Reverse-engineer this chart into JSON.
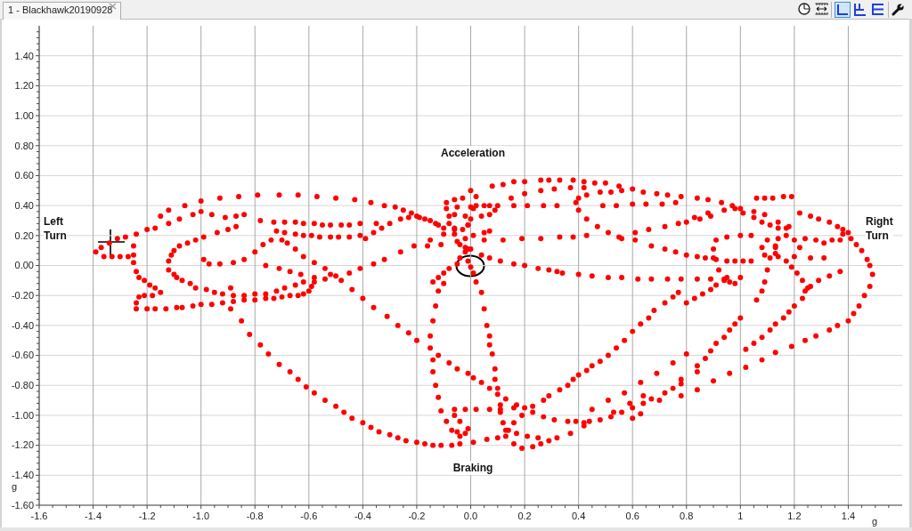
{
  "chart_data": {
    "type": "scatter",
    "title": "1 - Blackhawk20190928",
    "xlabel": "g",
    "ylabel": "g",
    "annotations": [
      "Acceleration",
      "Left Turn",
      "Right Turn",
      "Braking"
    ],
    "color": "#ff0000",
    "marker": "circle",
    "grid": true,
    "xlim": [
      -1.6,
      1.6
    ],
    "ylim": [
      -1.6,
      1.6
    ],
    "xticks": [
      -1.6,
      {
        "value": -1.55,
        "label": null
      },
      {
        "value": -1.5,
        "label": null
      },
      {
        "value": -1.45,
        "label": null
      },
      -1.4,
      {
        "value": -1.35,
        "label": null
      },
      {
        "value": -1.3,
        "label": null
      },
      {
        "value": -1.25,
        "label": null
      },
      -1.2,
      {
        "value": -1.15,
        "label": null
      },
      {
        "value": -1.1,
        "label": null
      },
      {
        "value": -1.05,
        "label": null
      },
      {
        "value": -1,
        "label": "-1.0"
      },
      {
        "value": -0.95,
        "label": null
      },
      {
        "value": -0.9,
        "label": null
      },
      {
        "value": -0.85,
        "label": null
      },
      -0.8,
      {
        "value": -0.75,
        "label": null
      },
      {
        "value": -0.7,
        "label": null
      },
      {
        "value": -0.65,
        "label": null
      },
      -0.6,
      {
        "value": -0.55,
        "label": null
      },
      {
        "value": -0.5,
        "label": null
      },
      {
        "value": -0.45,
        "label": null
      },
      -0.4,
      {
        "value": -0.35,
        "label": null
      },
      {
        "value": -0.3,
        "label": null
      },
      {
        "value": -0.25,
        "label": null
      },
      -0.2,
      {
        "value": -0.15,
        "label": null
      },
      {
        "value": -0.1,
        "label": null
      },
      {
        "value": -0.05,
        "label": null
      },
      {
        "value": 0,
        "label": "0.0"
      },
      {
        "value": 0.05,
        "label": null
      },
      {
        "value": 0.1,
        "label": null
      },
      {
        "value": 0.15,
        "label": null
      },
      0.2,
      {
        "value": 0.25,
        "label": null
      },
      {
        "value": 0.3,
        "label": null
      },
      {
        "value": 0.35,
        "label": null
      },
      0.4,
      {
        "value": 0.45,
        "label": null
      },
      {
        "value": 0.5,
        "label": null
      },
      {
        "value": 0.55,
        "label": null
      },
      0.6,
      {
        "value": 0.65,
        "label": null
      },
      {
        "value": 0.7,
        "label": null
      },
      {
        "value": 0.75,
        "label": null
      },
      0.8,
      {
        "value": 0.85,
        "label": null
      },
      {
        "value": 0.9,
        "label": null
      },
      {
        "value": 0.95,
        "label": null
      },
      1,
      {
        "value": 1.05,
        "label": null
      },
      {
        "value": 1.1,
        "label": null
      },
      {
        "value": 1.15,
        "label": null
      },
      1.2,
      {
        "value": 1.25,
        "label": null
      },
      {
        "value": 1.3,
        "label": null
      },
      {
        "value": 1.35,
        "label": null
      },
      1.4,
      {
        "value": 1.45,
        "label": null
      },
      {
        "value": 1.5,
        "label": null
      },
      {
        "value": 1.55,
        "label": null
      }
    ],
    "yticks": [
      {
        "value": -1.6,
        "label": "-1.60"
      },
      {
        "value": -1.56,
        "label": null
      },
      {
        "value": -1.52,
        "label": null
      },
      {
        "value": -1.48,
        "label": null
      },
      {
        "value": -1.44,
        "label": null
      },
      {
        "value": -1.4,
        "label": "-1.40"
      },
      {
        "value": -1.36,
        "label": null
      },
      {
        "value": -1.32,
        "label": null
      },
      {
        "value": -1.28,
        "label": null
      },
      {
        "value": -1.24,
        "label": null
      },
      {
        "value": -1.2,
        "label": "-1.20"
      },
      {
        "value": -1.16,
        "label": null
      },
      {
        "value": -1.12,
        "label": null
      },
      {
        "value": -1.08,
        "label": null
      },
      {
        "value": -1.04,
        "label": null
      },
      {
        "value": -1,
        "label": "-1.00"
      },
      {
        "value": -0.96,
        "label": null
      },
      {
        "value": -0.92,
        "label": null
      },
      {
        "value": -0.88,
        "label": null
      },
      {
        "value": -0.84,
        "label": null
      },
      {
        "value": -0.8,
        "label": "-0.80"
      },
      {
        "value": -0.76,
        "label": null
      },
      {
        "value": -0.72,
        "label": null
      },
      {
        "value": -0.68,
        "label": null
      },
      {
        "value": -0.64,
        "label": null
      },
      {
        "value": -0.6,
        "label": "-0.60"
      },
      {
        "value": -0.56,
        "label": null
      },
      {
        "value": -0.52,
        "label": null
      },
      {
        "value": -0.48,
        "label": null
      },
      {
        "value": -0.44,
        "label": null
      },
      {
        "value": -0.4,
        "label": "-0.40"
      },
      {
        "value": -0.36,
        "label": null
      },
      {
        "value": -0.32,
        "label": null
      },
      {
        "value": -0.28,
        "label": null
      },
      {
        "value": -0.24,
        "label": null
      },
      {
        "value": -0.2,
        "label": "-0.20"
      },
      {
        "value": -0.16,
        "label": null
      },
      {
        "value": -0.12,
        "label": null
      },
      {
        "value": -0.08,
        "label": null
      },
      {
        "value": -0.04,
        "label": null
      },
      {
        "value": 0,
        "label": "0.00"
      },
      {
        "value": 0.04,
        "label": null
      },
      {
        "value": 0.08,
        "label": null
      },
      {
        "value": 0.12,
        "label": null
      },
      {
        "value": 0.16,
        "label": null
      },
      {
        "value": 0.2,
        "label": "0.20"
      },
      {
        "value": 0.24,
        "label": null
      },
      {
        "value": 0.28,
        "label": null
      },
      {
        "value": 0.32,
        "label": null
      },
      {
        "value": 0.36,
        "label": null
      },
      {
        "value": 0.4,
        "label": "0.40"
      },
      {
        "value": 0.44,
        "label": null
      },
      {
        "value": 0.48,
        "label": null
      },
      {
        "value": 0.52,
        "label": null
      },
      {
        "value": 0.56,
        "label": null
      },
      {
        "value": 0.6,
        "label": "0.60"
      },
      {
        "value": 0.64,
        "label": null
      },
      {
        "value": 0.68,
        "label": null
      },
      {
        "value": 0.72,
        "label": null
      },
      {
        "value": 0.76,
        "label": null
      },
      {
        "value": 0.8,
        "label": "0.80"
      },
      {
        "value": 0.84,
        "label": null
      },
      {
        "value": 0.88,
        "label": null
      },
      {
        "value": 0.92,
        "label": null
      },
      {
        "value": 0.96,
        "label": null
      },
      {
        "value": 1,
        "label": "1.00"
      },
      {
        "value": 1.04,
        "label": null
      },
      {
        "value": 1.08,
        "label": null
      },
      {
        "value": 1.12,
        "label": null
      },
      {
        "value": 1.16,
        "label": null
      },
      {
        "value": 1.2,
        "label": "1.20"
      },
      {
        "value": 1.24,
        "label": null
      },
      {
        "value": 1.28,
        "label": null
      },
      {
        "value": 1.32,
        "label": null
      },
      {
        "value": 1.36,
        "label": null
      },
      {
        "value": 1.4,
        "label": "1.40"
      },
      {
        "value": 1.44,
        "label": null
      },
      {
        "value": 1.48,
        "label": null
      },
      {
        "value": 1.52,
        "label": null
      },
      {
        "value": 1.56,
        "label": null
      }
    ],
    "x": [
      -1.39,
      -1.36,
      -1.33,
      -1.3,
      -1.27,
      -1.37,
      -1.34,
      -1.31,
      -1.28,
      -1.24,
      -1.2,
      -1.17,
      -1.12,
      -1.08,
      -1.03,
      -1,
      -0.96,
      -0.91,
      -0.87,
      -0.84,
      -1.25,
      -1.25,
      -1.25,
      -1.24,
      -1.23,
      -1.21,
      -1.19,
      -1.17,
      -1.15,
      -1.18,
      -1.21,
      -1.23,
      -1.24,
      -1.24,
      -1.2,
      -1.17,
      -1.13,
      -1.09,
      -1.07,
      -1.03,
      -1,
      -0.96,
      -0.92,
      -0.88,
      -0.84,
      -0.8,
      -0.76,
      -0.73,
      -0.7,
      -0.67,
      -0.64,
      -0.62,
      -0.6,
      -0.59,
      -0.58,
      -1.12,
      -1.11,
      -1.1,
      -1.08,
      -1.05,
      -1.02,
      -0.99,
      -0.94,
      -0.9,
      -0.87,
      -1.12,
      -1.1,
      -1.09,
      -1.07,
      -1.04,
      -1.02,
      -0.98,
      -0.95,
      -0.92,
      -0.88,
      -0.84,
      -0.8,
      -0.76,
      -0.72,
      -0.69,
      -0.65,
      -0.62,
      -0.99,
      -0.97,
      -0.93,
      -0.88,
      -0.84,
      -0.8,
      -0.77,
      -0.74,
      -0.7,
      -0.68,
      -0.65,
      -0.62,
      -0.58,
      -0.76,
      -0.71,
      -0.67,
      -0.63,
      -0.58,
      -0.54,
      -0.5,
      -0.45,
      -0.41,
      -0.36,
      -0.32,
      -0.26,
      -0.21,
      -0.15,
      -0.1,
      -0.06,
      -0.01,
      -0.89,
      -0.89,
      -0.54,
      -0.52,
      -1.15,
      -1.12,
      -1.06,
      -1,
      -0.93,
      -0.86,
      -0.79,
      -0.71,
      -0.64,
      -0.57,
      -0.5,
      -0.43,
      -0.37,
      -0.32,
      -0.28,
      -0.25,
      -0.22,
      -0.19,
      -0.15,
      -0.12,
      -0.36,
      -0.33,
      -0.3,
      -0.26,
      -0.23,
      -0.2,
      -0.17,
      -0.13,
      -0.1,
      -0.78,
      -0.73,
      -0.69,
      -0.65,
      -0.62,
      -0.58,
      -0.55,
      -0.52,
      -0.48,
      -0.45,
      -0.41,
      -0.35,
      -0.72,
      -0.69,
      -0.65,
      -0.62,
      -0.59,
      -0.56,
      -0.52,
      -0.49,
      -0.45,
      -0.41,
      -0.39,
      -0.16,
      -0.11,
      -0.02,
      -0.04,
      -0.05,
      -0.08,
      -0.1,
      -0.12,
      -0.14,
      0,
      0.02,
      0.02,
      0.01,
      -0.03,
      -0.06,
      -0.09,
      -0.09,
      -0.06,
      -0.02,
      0.04,
      0.07,
      0.09,
      0.07,
      0,
      -0.05,
      -0.08,
      -0.08,
      -0.06,
      -0.03,
      -0.01,
      0,
      -0.06,
      -0.02,
      0.01,
      0.05,
      0.07,
      -0.05,
      -0.04,
      -0.02,
      -0.01,
      0,
      0.04,
      0.07,
      0.11,
      0.16,
      0.2,
      0.25,
      0.29,
      0.32,
      0.34,
      0.4,
      0.45,
      0.51,
      0.56,
      0.62,
      0.67,
      0.73,
      0.78,
      0.84,
      0.89,
      0.94,
      0.96,
      0.98,
      1,
      -0.01,
      0,
      0.01,
      0.02,
      0.04,
      0.05,
      0.06,
      0.07,
      0.07,
      0.08,
      0.09,
      0.09,
      0.1,
      0.11,
      0.11,
      0.12,
      0.13,
      -0.1,
      -0.12,
      -0.13,
      -0.14,
      -0.15,
      -0.15,
      -0.14,
      -0.14,
      -0.13,
      -0.12,
      -0.11,
      -0.09,
      -0.07,
      -0.04,
      -0.05,
      -0.02,
      -0.01,
      -0.04,
      -0.06,
      -0.06,
      -0.02,
      0.02,
      0.07,
      0.11,
      0.16,
      -0.48,
      -0.44,
      -0.4,
      -0.36,
      -0.31,
      -0.27,
      -0.23,
      -0.2,
      -0.12,
      -0.08,
      -0.05,
      -0.01,
      0.01,
      0.04,
      0.07,
      0.1,
      0.13,
      0.17,
      0.2,
      0.23,
      0.27,
      0.31,
      0.36,
      0.39,
      0.42,
      0.44,
      0.48,
      0.52,
      0.56,
      0.6,
      0.64,
      0.67,
      0.72,
      0.75,
      0.78,
      -0.85,
      -0.82,
      -0.78,
      -0.75,
      -0.71,
      -0.67,
      -0.64,
      -0.61,
      -0.58,
      -0.54,
      -0.5,
      -0.47,
      -0.44,
      -0.4,
      -0.37,
      -0.34,
      -0.3,
      -0.27,
      -0.24,
      -0.2,
      -0.17,
      -0.14,
      -0.11,
      -0.07,
      -0.04,
      0.01,
      0.06,
      0.1,
      0.13,
      0.16,
      0.19,
      0.23,
      0.26,
      0.29,
      0.25,
      0.21,
      0.17,
      0.14,
      0.16,
      0.19,
      0.23,
      0.27,
      0.29,
      0.33,
      0.36,
      0.38,
      0.4,
      0.43,
      0.45,
      0.48,
      0.51,
      0.54,
      0.57,
      0.6,
      0.63,
      0.66,
      0.68,
      0.72,
      0.75,
      0.77,
      0.8,
      0.83,
      0.86,
      0.89,
      0.91,
      0.94,
      0.32,
      0.37,
      0.42,
      0.53,
      0.59,
      0.64,
      0.78,
      0.84,
      0.45,
      0.51,
      0.57,
      0.63,
      0.69,
      0.75,
      0.6,
      0.63,
      0.7,
      0.78,
      0.84,
      0.9,
      0.96,
      1.02,
      0.8,
      0.84,
      0.87,
      0.89,
      0.91,
      0.94,
      0.96,
      0.98,
      1,
      1.02,
      1.05,
      1.08,
      1.11,
      1.13,
      1.16,
      1.18,
      1.2,
      1.23,
      1.24,
      1.26,
      1.08,
      1.13,
      1.19,
      1.24,
      1.28,
      1.33,
      1.36,
      1.4,
      1.42,
      1.44,
      1.46,
      1.48,
      1.49,
      1.48,
      1.47,
      1.45,
      1.43,
      1.41,
      1.4,
      1.38,
      1.36,
      1.33,
      1.29,
      1.26,
      1.22,
      0.08,
      0.12,
      0.16,
      0.2,
      0.26,
      0.29,
      0.33,
      0.38,
      0.42,
      0.46,
      0.5,
      0.55,
      0.6,
      0.64,
      0.69,
      0.73,
      0.78,
      0.84,
      0.88,
      0.93,
      0.97,
      1,
      1.05,
      1.09,
      1.14,
      1.17,
      0.15,
      0.2,
      0.26,
      0.31,
      0.37,
      0.42,
      0.39,
      0.4,
      0.43,
      0.47,
      0.51,
      0.55,
      0.61,
      0.66,
      0.72,
      0.77,
      0.83,
      0.88,
      0.94,
      0.4,
      0.43,
      0.48,
      0.52,
      0.56,
      0.05,
      0.1,
      0.16,
      0.21,
      0.27,
      0.32,
      0.49,
      0.54,
      0.6,
      0.65,
      0.71,
      0.76,
      0.05,
      0.12,
      0.19,
      0.26,
      0.33,
      0.38,
      0.43,
      0.56,
      0.61,
      0.67,
      0.72,
      0.76,
      0.8,
      0.84,
      0.87,
      0.91,
      0.95,
      0.98,
      1.01,
      1.04,
      0.8,
      0.85,
      0.89,
      0.98,
      1.06,
      1.09,
      1.12,
      1.16,
      1.19,
      1.01,
      1.05,
      1.08,
      1.11,
      1.14,
      1.18,
      1.38,
      1.37,
      1.17,
      1.2,
      1.22,
      1.2,
      1.17,
      1.14,
      1.13,
      1.14,
      1.1,
      1.13,
      1.13,
      1.11,
      1.09,
      1.08,
      1.19,
      1.21,
      1.23,
      1.25,
      1.29,
      1.33,
      1.37,
      0.91,
      0.95,
      1,
      1.04,
      0.9,
      0.9,
      0.92,
      0.95,
      1.1,
      1.09,
      1.08,
      1.06,
      1.24,
      1.28,
      1.31,
      1.34,
      1.26,
      1.31
    ],
    "values": [
      0.09,
      0.06,
      0.06,
      0.06,
      0.06,
      0.12,
      0.15,
      0.18,
      0.19,
      0.21,
      0.24,
      0.25,
      0.28,
      0.31,
      0.34,
      0.36,
      0.34,
      0.32,
      0.33,
      0.34,
      0.13,
      0.07,
      0.02,
      -0.04,
      -0.08,
      -0.1,
      -0.13,
      -0.15,
      -0.18,
      -0.2,
      -0.2,
      -0.21,
      -0.25,
      -0.29,
      -0.29,
      -0.29,
      -0.29,
      -0.28,
      -0.28,
      -0.27,
      -0.26,
      -0.26,
      -0.25,
      -0.24,
      -0.23,
      -0.23,
      -0.22,
      -0.22,
      -0.21,
      -0.2,
      -0.2,
      -0.19,
      -0.17,
      -0.14,
      -0.11,
      0.03,
      0.07,
      0.1,
      0.13,
      0.15,
      0.17,
      0.19,
      0.22,
      0.24,
      0.26,
      -0.03,
      -0.06,
      -0.08,
      -0.1,
      -0.12,
      -0.15,
      -0.16,
      -0.18,
      -0.19,
      -0.2,
      -0.2,
      -0.19,
      -0.19,
      -0.17,
      -0.15,
      -0.13,
      -0.11,
      0.04,
      0.01,
      0.01,
      0.02,
      0.04,
      0.09,
      0.14,
      0.17,
      0.17,
      0.15,
      0.11,
      0.06,
      0.02,
      0,
      -0.02,
      -0.04,
      -0.06,
      -0.08,
      -0.09,
      -0.07,
      -0.05,
      -0.02,
      0.01,
      0.04,
      0.09,
      0.13,
      0.17,
      0.21,
      0.24,
      0.27,
      -0.15,
      -0.29,
      -0.02,
      -0.06,
      0.33,
      0.37,
      0.4,
      0.43,
      0.45,
      0.46,
      0.47,
      0.47,
      0.47,
      0.46,
      0.45,
      0.44,
      0.42,
      0.4,
      0.39,
      0.37,
      0.35,
      0.32,
      0.3,
      0.27,
      0.22,
      0.25,
      0.28,
      0.31,
      0.32,
      0.33,
      0.31,
      0.28,
      0.25,
      0.3,
      0.29,
      0.29,
      0.29,
      0.28,
      0.28,
      0.27,
      0.27,
      0.27,
      0.27,
      0.28,
      0.28,
      0.23,
      0.22,
      0.21,
      0.2,
      0.2,
      0.19,
      0.19,
      0.19,
      0.19,
      0.2,
      0.18,
      0.13,
      0.14,
      0.09,
      0.05,
      0.01,
      -0.02,
      -0.05,
      -0.08,
      -0.11,
      0.5,
      0.46,
      0.4,
      0.38,
      0.45,
      0.44,
      0.42,
      0.38,
      0.34,
      0.33,
      0.33,
      0.34,
      0.37,
      0.4,
      0.39,
      0.39,
      0.33,
      0.28,
      0.25,
      0.24,
      0.27,
      0.31,
      0.21,
      0.18,
      0.2,
      0.22,
      0.23,
      0.16,
      0.14,
      0.12,
      0.11,
      0.11,
      0.07,
      0.05,
      0.03,
      0.01,
      0,
      -0.02,
      -0.03,
      -0.04,
      -0.05,
      -0.06,
      -0.07,
      -0.08,
      -0.08,
      -0.09,
      -0.09,
      -0.09,
      -0.09,
      -0.09,
      -0.09,
      -0.09,
      -0.11,
      -0.12,
      -0.08,
      0.03,
      -0.01,
      -0.05,
      -0.11,
      -0.18,
      -0.29,
      -0.4,
      -0.47,
      -0.53,
      -0.59,
      -0.69,
      -0.76,
      -0.82,
      -0.93,
      -0.98,
      -1.05,
      -1.1,
      -0.12,
      -0.17,
      -0.27,
      -0.37,
      -0.47,
      -0.55,
      -0.63,
      -0.71,
      -0.8,
      -0.88,
      -0.97,
      -1.04,
      -1.1,
      -1.14,
      -1.11,
      -1.12,
      -1.09,
      -1.04,
      -1,
      -0.96,
      -0.96,
      -0.96,
      -0.96,
      -0.96,
      -0.95,
      -0.1,
      -0.16,
      -0.22,
      -0.28,
      -0.34,
      -0.4,
      -0.45,
      -0.5,
      -0.6,
      -0.65,
      -0.69,
      -0.72,
      -0.75,
      -0.78,
      -0.82,
      -0.86,
      -0.89,
      -0.93,
      -0.95,
      -0.98,
      -1.01,
      -1.03,
      -1.04,
      -1.04,
      -1.05,
      -1.04,
      -1.03,
      -1.01,
      -0.98,
      -0.95,
      -0.92,
      -0.89,
      -0.85,
      -0.82,
      -0.79,
      -0.37,
      -0.46,
      -0.53,
      -0.59,
      -0.66,
      -0.71,
      -0.76,
      -0.81,
      -0.85,
      -0.9,
      -0.94,
      -0.98,
      -1.02,
      -1.05,
      -1.08,
      -1.11,
      -1.13,
      -1.15,
      -1.17,
      -1.18,
      -1.19,
      -1.2,
      -1.2,
      -1.2,
      -1.19,
      -1.18,
      -1.16,
      -1.15,
      -1.14,
      -1.19,
      -1.22,
      -1.21,
      -1.19,
      -1.17,
      -1.15,
      -1.14,
      -1.12,
      -1.1,
      -1.05,
      -1,
      -0.94,
      -0.9,
      -0.87,
      -0.83,
      -0.8,
      -0.76,
      -0.73,
      -0.7,
      -0.67,
      -0.64,
      -0.6,
      -0.55,
      -0.5,
      -0.44,
      -0.39,
      -0.35,
      -0.3,
      -0.25,
      -0.21,
      -0.18,
      -0.25,
      -0.22,
      -0.19,
      -0.16,
      -0.13,
      -0.1,
      -1.15,
      -1.12,
      -1.07,
      -0.98,
      -0.92,
      -0.87,
      -0.76,
      -0.71,
      -0.96,
      -0.9,
      -0.85,
      -0.78,
      -0.72,
      -0.65,
      -1.02,
      -0.99,
      -0.9,
      -0.87,
      -0.83,
      -0.77,
      -0.72,
      -0.68,
      -0.59,
      -0.67,
      -0.62,
      -0.57,
      -0.52,
      -0.48,
      -0.43,
      -0.39,
      -0.35,
      -0.56,
      -0.52,
      -0.48,
      -0.43,
      -0.39,
      -0.35,
      -0.31,
      -0.27,
      -0.22,
      -0.17,
      -0.14,
      -0.63,
      -0.58,
      -0.54,
      -0.5,
      -0.47,
      -0.43,
      -0.4,
      -0.37,
      -0.32,
      -0.27,
      -0.2,
      -0.14,
      -0.06,
      0,
      0.04,
      0.1,
      0.14,
      0.18,
      0.22,
      0.24,
      0.26,
      0.29,
      0.31,
      0.33,
      0.35,
      0.53,
      0.54,
      0.56,
      0.56,
      0.57,
      0.57,
      0.57,
      0.57,
      0.56,
      0.55,
      0.55,
      0.53,
      0.51,
      0.49,
      0.48,
      0.47,
      0.46,
      0.45,
      0.44,
      0.42,
      0.4,
      0.38,
      0.36,
      0.34,
      0.29,
      0.25,
      0.45,
      0.48,
      0.5,
      0.51,
      0.52,
      0.52,
      0.42,
      0.37,
      0.31,
      0.26,
      0.22,
      0.19,
      0.22,
      0.24,
      0.26,
      0.28,
      0.32,
      0.35,
      0.37,
      0.45,
      0.47,
      0.49,
      0.49,
      0.5,
      0.4,
      0.4,
      0.4,
      0.4,
      0.4,
      0.4,
      0.4,
      0.4,
      0.41,
      0.41,
      0.41,
      0.42,
      0.17,
      0.17,
      0.18,
      0.18,
      0.19,
      0.19,
      0.2,
      0.18,
      0.17,
      0.13,
      0.11,
      0.09,
      0.07,
      0.06,
      0.05,
      0.04,
      0.03,
      0.03,
      0.03,
      0.03,
      0.29,
      0.31,
      0.33,
      0.38,
      0.45,
      0.45,
      0.45,
      0.46,
      0.46,
      0.35,
      0.32,
      0.29,
      0.27,
      0.25,
      0.26,
      0.21,
      0.17,
      0.2,
      0.17,
      0.12,
      0.06,
      0.03,
      0.06,
      0.12,
      0.18,
      0.17,
      0.13,
      0.08,
      0.05,
      0.07,
      0.12,
      -0.01,
      -0.05,
      -0.1,
      -0.15,
      -0.1,
      -0.07,
      -0.04,
      0.17,
      0.19,
      0.2,
      0.2,
      0.11,
      0.05,
      -0.03,
      -0.08,
      -0.03,
      -0.11,
      -0.17,
      -0.23,
      0.18,
      0.17,
      0.15,
      0.17,
      0.05,
      0.05
    ]
  }
}
